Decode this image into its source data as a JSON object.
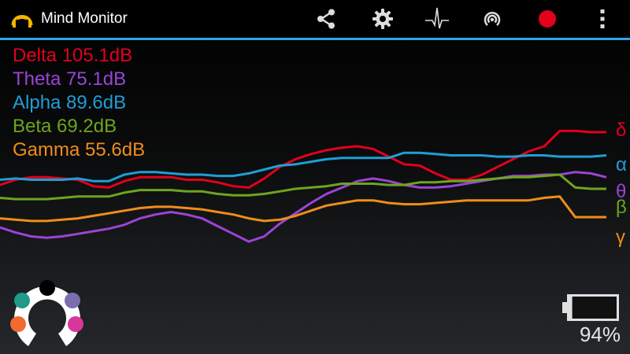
{
  "app": {
    "title": "Mind Monitor"
  },
  "toolbar": {
    "actions": [
      {
        "name": "share-icon"
      },
      {
        "name": "settings-icon"
      },
      {
        "name": "waveform-icon"
      },
      {
        "name": "broadcast-icon"
      },
      {
        "name": "record-icon"
      },
      {
        "name": "overflow-menu-icon"
      }
    ],
    "accent_color": "#2fa6e8",
    "record_color": "#e3001b"
  },
  "bands": [
    {
      "label": "Delta 105.1dB",
      "symbol": "δ",
      "color": "#e3001b"
    },
    {
      "label": "Theta 75.1dB",
      "symbol": "θ",
      "color": "#9b44d6"
    },
    {
      "label": "Alpha 89.6dB",
      "symbol": "α",
      "color": "#1f9ed6"
    },
    {
      "label": "Beta 69.2dB",
      "symbol": "β",
      "color": "#6da51f"
    },
    {
      "label": "Gamma 55.6dB",
      "symbol": "γ",
      "color": "#f08d1a"
    }
  ],
  "chart_data": {
    "type": "line",
    "x": [
      0,
      1,
      2,
      3,
      4,
      5,
      6,
      7,
      8,
      9,
      10,
      11,
      12,
      13,
      14,
      15,
      16,
      17,
      18,
      19,
      20,
      21,
      22,
      23,
      24,
      25,
      26,
      27,
      28,
      29,
      30,
      31,
      32,
      33,
      34,
      35,
      36,
      37,
      38,
      39
    ],
    "series": [
      {
        "name": "δ",
        "values": [
          58,
          62,
          64,
          64,
          63,
          62,
          57,
          56,
          61,
          64,
          64,
          64,
          62,
          62,
          60,
          57,
          56,
          63,
          72,
          78,
          82,
          85,
          87,
          88,
          86,
          80,
          74,
          73,
          67,
          62,
          62,
          66,
          72,
          78,
          84,
          88,
          100,
          100,
          99,
          99
        ]
      },
      {
        "name": "α",
        "values": [
          62,
          63,
          62,
          62,
          62,
          63,
          61,
          61,
          66,
          68,
          68,
          67,
          66,
          66,
          65,
          65,
          67,
          70,
          73,
          74,
          76,
          78,
          79,
          79,
          79,
          79,
          83,
          83,
          82,
          81,
          81,
          81,
          80,
          80,
          81,
          81,
          80,
          80,
          80,
          81
        ]
      },
      {
        "name": "θ",
        "values": [
          25,
          21,
          18,
          17,
          18,
          20,
          22,
          24,
          27,
          32,
          35,
          37,
          35,
          32,
          26,
          20,
          14,
          18,
          28,
          36,
          44,
          51,
          56,
          61,
          63,
          61,
          58,
          56,
          56,
          57,
          59,
          61,
          63,
          65,
          65,
          66,
          66,
          68,
          67,
          64
        ]
      },
      {
        "name": "β",
        "values": [
          48,
          47,
          47,
          47,
          48,
          49,
          49,
          49,
          52,
          54,
          54,
          54,
          53,
          53,
          51,
          50,
          50,
          51,
          53,
          55,
          56,
          57,
          59,
          59,
          59,
          58,
          58,
          60,
          60,
          61,
          61,
          62,
          63,
          64,
          64,
          65,
          66,
          56,
          55,
          55
        ]
      },
      {
        "name": "γ",
        "values": [
          32,
          31,
          30,
          30,
          31,
          32,
          34,
          36,
          38,
          40,
          41,
          41,
          40,
          39,
          37,
          35,
          32,
          30,
          31,
          34,
          38,
          42,
          44,
          46,
          46,
          44,
          43,
          43,
          44,
          45,
          46,
          46,
          46,
          46,
          46,
          48,
          49,
          33,
          33,
          33
        ]
      }
    ],
    "ylim": [
      0,
      110
    ],
    "grid": false,
    "legend": "top-left"
  },
  "headband": {
    "sensors": [
      {
        "name": "sensor-tp9",
        "color": "#1f9a8a"
      },
      {
        "name": "sensor-fpz",
        "color": "#000000"
      },
      {
        "name": "sensor-af8",
        "color": "#7b6db0"
      },
      {
        "name": "sensor-af7",
        "color": "#f26a2e"
      },
      {
        "name": "sensor-tp10",
        "color": "#d9359a"
      }
    ]
  },
  "battery": {
    "percent_label": "94%",
    "level": 0.06
  }
}
